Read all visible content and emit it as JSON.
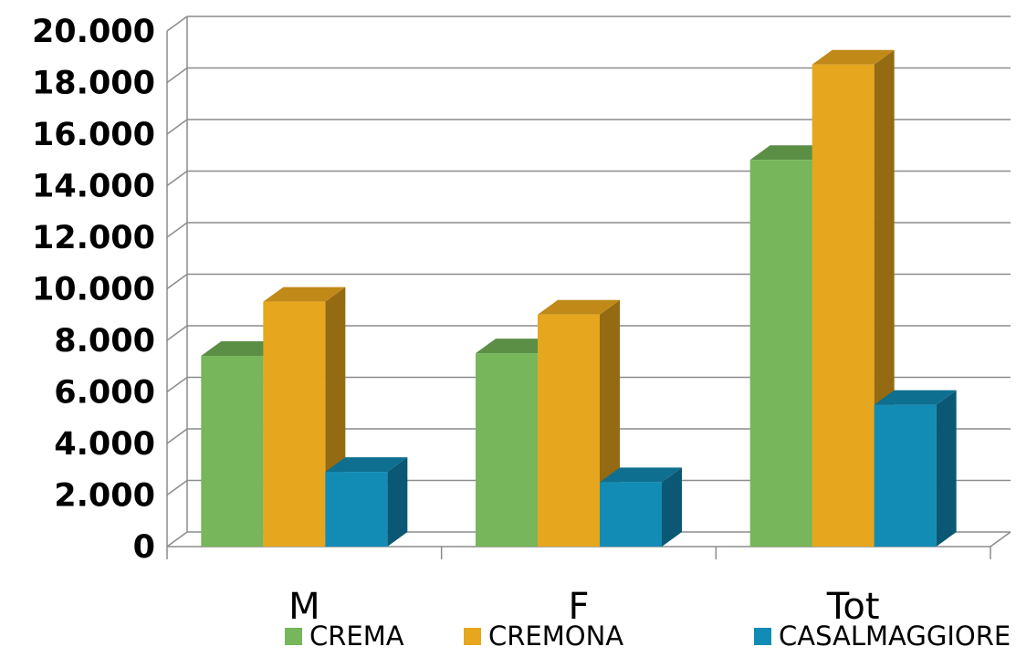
{
  "chart_data": {
    "type": "bar",
    "categories": [
      "M",
      "F",
      "Tot"
    ],
    "series": [
      {
        "name": "CREMA",
        "values": [
          7400,
          7500,
          15000
        ],
        "color": "#77b65a",
        "top_color": "#5a8f45",
        "side_color": "#4f7f3c"
      },
      {
        "name": "CREMONA",
        "values": [
          9500,
          9000,
          18700
        ],
        "color": "#e6a61e",
        "top_color": "#c18918",
        "side_color": "#946a12"
      },
      {
        "name": "CASALMAGGIORE",
        "values": [
          2900,
          2500,
          5500
        ],
        "color": "#138cb5",
        "top_color": "#0f6f90",
        "side_color": "#0b5874"
      }
    ],
    "yticks": [
      "0",
      "2.000",
      "4.000",
      "6.000",
      "8.000",
      "10.000",
      "12.000",
      "14.000",
      "16.000",
      "18.000",
      "20.000"
    ],
    "ylim": [
      0,
      20000
    ],
    "grid": true,
    "legend_position": "bottom",
    "three_d": true
  }
}
